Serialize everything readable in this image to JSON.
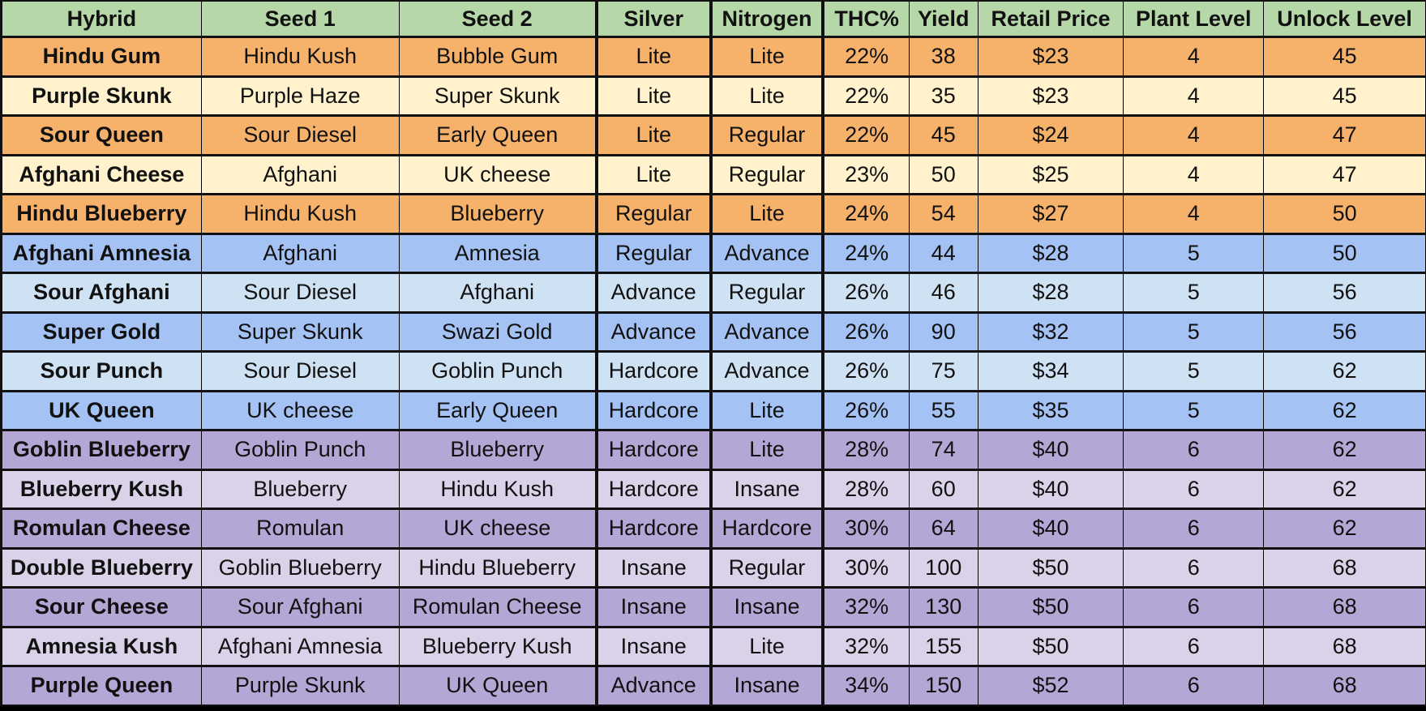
{
  "colors": {
    "header": "#b6d7a8",
    "orange_dark": "#f6b26b",
    "orange_light": "#fff2cc",
    "blue_dark": "#a4c2f4",
    "blue_light": "#cfe2f3",
    "purple_dark": "#b4a7d6",
    "purple_light": "#d9d2e9"
  },
  "columns": [
    "Hybrid",
    "Seed 1",
    "Seed 2",
    "Silver",
    "Nitrogen",
    "THC%",
    "Yield",
    "Retail Price",
    "Plant Level",
    "Unlock Level"
  ],
  "rows": [
    {
      "band": "orange_dark",
      "cells": [
        "Hindu Gum",
        "Hindu Kush",
        "Bubble Gum",
        "Lite",
        "Lite",
        "22%",
        "38",
        "$23",
        "4",
        "45"
      ]
    },
    {
      "band": "orange_light",
      "cells": [
        "Purple Skunk",
        "Purple Haze",
        "Super Skunk",
        "Lite",
        "Lite",
        "22%",
        "35",
        "$23",
        "4",
        "45"
      ]
    },
    {
      "band": "orange_dark",
      "cells": [
        "Sour Queen",
        "Sour Diesel",
        "Early Queen",
        "Lite",
        "Regular",
        "22%",
        "45",
        "$24",
        "4",
        "47"
      ]
    },
    {
      "band": "orange_light",
      "cells": [
        "Afghani Cheese",
        "Afghani",
        "UK cheese",
        "Lite",
        "Regular",
        "23%",
        "50",
        "$25",
        "4",
        "47"
      ]
    },
    {
      "band": "orange_dark",
      "cells": [
        "Hindu Blueberry",
        "Hindu Kush",
        "Blueberry",
        "Regular",
        "Lite",
        "24%",
        "54",
        "$27",
        "4",
        "50"
      ]
    },
    {
      "band": "blue_dark",
      "cells": [
        "Afghani Amnesia",
        "Afghani",
        "Amnesia",
        "Regular",
        "Advance",
        "24%",
        "44",
        "$28",
        "5",
        "50"
      ]
    },
    {
      "band": "blue_light",
      "cells": [
        "Sour Afghani",
        "Sour Diesel",
        "Afghani",
        "Advance",
        "Regular",
        "26%",
        "46",
        "$28",
        "5",
        "56"
      ]
    },
    {
      "band": "blue_dark",
      "cells": [
        "Super Gold",
        "Super Skunk",
        "Swazi Gold",
        "Advance",
        "Advance",
        "26%",
        "90",
        "$32",
        "5",
        "56"
      ]
    },
    {
      "band": "blue_light",
      "cells": [
        "Sour Punch",
        "Sour Diesel",
        "Goblin Punch",
        "Hardcore",
        "Advance",
        "26%",
        "75",
        "$34",
        "5",
        "62"
      ]
    },
    {
      "band": "blue_dark",
      "cells": [
        "UK Queen",
        "UK cheese",
        "Early Queen",
        "Hardcore",
        "Lite",
        "26%",
        "55",
        "$35",
        "5",
        "62"
      ]
    },
    {
      "band": "purple_dark",
      "cells": [
        "Goblin Blueberry",
        "Goblin Punch",
        "Blueberry",
        "Hardcore",
        "Lite",
        "28%",
        "74",
        "$40",
        "6",
        "62"
      ]
    },
    {
      "band": "purple_light",
      "cells": [
        "Blueberry Kush",
        "Blueberry",
        "Hindu Kush",
        "Hardcore",
        "Insane",
        "28%",
        "60",
        "$40",
        "6",
        "62"
      ]
    },
    {
      "band": "purple_dark",
      "cells": [
        "Romulan Cheese",
        "Romulan",
        "UK cheese",
        "Hardcore",
        "Hardcore",
        "30%",
        "64",
        "$40",
        "6",
        "62"
      ]
    },
    {
      "band": "purple_light",
      "cells": [
        "Double Blueberry",
        "Goblin Blueberry",
        "Hindu Blueberry",
        "Insane",
        "Regular",
        "30%",
        "100",
        "$50",
        "6",
        "68"
      ]
    },
    {
      "band": "purple_dark",
      "cells": [
        "Sour Cheese",
        "Sour Afghani",
        "Romulan Cheese",
        "Insane",
        "Insane",
        "32%",
        "130",
        "$50",
        "6",
        "68"
      ]
    },
    {
      "band": "purple_light",
      "cells": [
        "Amnesia Kush",
        "Afghani Amnesia",
        "Blueberry Kush",
        "Insane",
        "Lite",
        "32%",
        "155",
        "$50",
        "6",
        "68"
      ]
    },
    {
      "band": "purple_dark",
      "cells": [
        "Purple Queen",
        "Purple Skunk",
        "UK Queen",
        "Advance",
        "Insane",
        "34%",
        "150",
        "$52",
        "6",
        "68"
      ]
    }
  ]
}
